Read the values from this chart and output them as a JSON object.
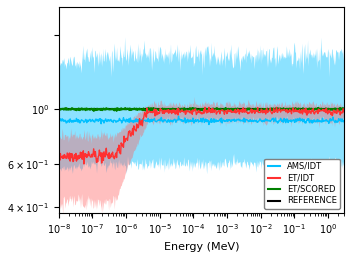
{
  "xlabel": "Energy (MeV)",
  "legend_labels": [
    "AMS/IDT",
    "ET/IDT",
    "ET/SCORED",
    "REFERENCE"
  ],
  "cyan_color": "#00bfff",
  "red_color": "#ff3030",
  "green_color": "#008000",
  "black_color": "#000000"
}
